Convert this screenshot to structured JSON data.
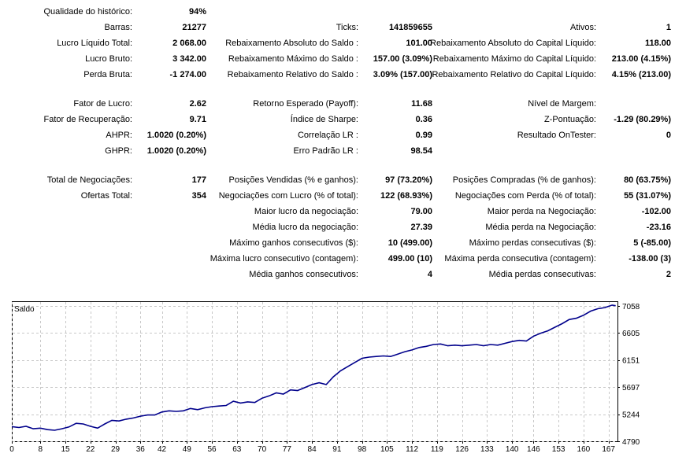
{
  "stats": [
    {
      "top": 7,
      "cells": [
        {
          "label": "Qualidade do histórico:",
          "value": "94%"
        }
      ]
    },
    {
      "top": 27,
      "cells": [
        {
          "label": "Barras:",
          "value": "21277"
        },
        {
          "label": "Ticks:",
          "value": "141859655"
        },
        {
          "label": "Ativos:",
          "value": "1"
        }
      ]
    },
    {
      "top": 47,
      "cells": [
        {
          "label": "Lucro Líquido Total:",
          "value": "2 068.00"
        },
        {
          "label": "Rebaixamento Absoluto do Saldo :",
          "value": "101.00"
        },
        {
          "label": "Rebaixamento Absoluto do Capital Líquido:",
          "value": "118.00"
        }
      ]
    },
    {
      "top": 67,
      "cells": [
        {
          "label": "Lucro Bruto:",
          "value": "3 342.00"
        },
        {
          "label": "Rebaixamento Máximo do Saldo :",
          "value": "157.00 (3.09%)"
        },
        {
          "label": "Rebaixamento Máximo do Capital Líquido:",
          "value": "213.00 (4.15%)"
        }
      ]
    },
    {
      "top": 87,
      "cells": [
        {
          "label": "Perda Bruta:",
          "value": "-1 274.00"
        },
        {
          "label": "Rebaixamento Relativo do Saldo :",
          "value": "3.09% (157.00)"
        },
        {
          "label": "Rebaixamento Relativo do Capital Líquido:",
          "value": "4.15% (213.00)"
        }
      ]
    },
    {
      "top": 124,
      "cells": [
        {
          "label": "Fator de Lucro:",
          "value": "2.62"
        },
        {
          "label": "Retorno Esperado (Payoff):",
          "value": "11.68"
        },
        {
          "label": "Nível de Margem:",
          "value": ""
        }
      ]
    },
    {
      "top": 144,
      "cells": [
        {
          "label": "Fator de Recuperação:",
          "value": "9.71"
        },
        {
          "label": "Índice de Sharpe:",
          "value": "0.36"
        },
        {
          "label": "Z-Pontuação:",
          "value": "-1.29 (80.29%)"
        }
      ]
    },
    {
      "top": 164,
      "cells": [
        {
          "label": "AHPR:",
          "value": "1.0020 (0.20%)"
        },
        {
          "label": "Correlação LR :",
          "value": "0.99"
        },
        {
          "label": "Resultado OnTester:",
          "value": "0"
        }
      ]
    },
    {
      "top": 184,
      "cells": [
        {
          "label": "GHPR:",
          "value": "1.0020 (0.20%)"
        },
        {
          "label": "Erro Padrão LR :",
          "value": "98.54"
        }
      ]
    },
    {
      "top": 221,
      "cells": [
        {
          "label": "Total de Negociações:",
          "value": "177"
        },
        {
          "label": "Posições Vendidas (% e ganhos):",
          "value": "97 (73.20%)"
        },
        {
          "label": "Posições Compradas (% de ganhos):",
          "value": "80 (63.75%)"
        }
      ]
    },
    {
      "top": 241,
      "cells": [
        {
          "label": "Ofertas Total:",
          "value": "354"
        },
        {
          "label": "Negociações com Lucro (% of total):",
          "value": "122 (68.93%)"
        },
        {
          "label": "Negociações com Perda (% of total):",
          "value": "55 (31.07%)"
        }
      ]
    },
    {
      "top": 261,
      "cells": [
        null,
        {
          "label": "Maior lucro da negociação:",
          "value": "79.00"
        },
        {
          "label": "Maior perda na Negociação:",
          "value": "-102.00"
        }
      ]
    },
    {
      "top": 281,
      "cells": [
        null,
        {
          "label": "Média lucro da negociação:",
          "value": "27.39"
        },
        {
          "label": "Média perda na Negociação:",
          "value": "-23.16"
        }
      ]
    },
    {
      "top": 301,
      "cells": [
        null,
        {
          "label": "Máximo ganhos consecutivos ($):",
          "value": "10 (499.00)"
        },
        {
          "label": "Máximo perdas consecutivas ($):",
          "value": "5 (-85.00)"
        }
      ]
    },
    {
      "top": 321,
      "cells": [
        null,
        {
          "label": "Máxima lucro consecutivo (contagem):",
          "value": "499.00 (10)"
        },
        {
          "label": "Máxima perda consecutiva (contagem):",
          "value": "-138.00 (3)"
        }
      ]
    },
    {
      "top": 341,
      "cells": [
        null,
        {
          "label": "Média ganhos consecutivos:",
          "value": "4"
        },
        {
          "label": "Média perdas consecutivas:",
          "value": "2"
        }
      ]
    }
  ],
  "chart_data": {
    "type": "line",
    "title": "Saldo",
    "xlabel": "",
    "ylabel": "",
    "x_ticks": [
      0,
      8,
      15,
      22,
      29,
      36,
      42,
      49,
      56,
      63,
      70,
      77,
      84,
      91,
      98,
      105,
      112,
      119,
      126,
      133,
      140,
      146,
      153,
      160,
      167
    ],
    "y_ticks": [
      4790,
      5244,
      5697,
      6151,
      6605,
      7058
    ],
    "xlim": [
      0,
      169.5
    ],
    "ylim": [
      4790,
      7135
    ],
    "grid": true,
    "line_color": "#00008B",
    "series": [
      {
        "name": "",
        "x": [
          0,
          2,
          4,
          6,
          8,
          10,
          12,
          14,
          16,
          18,
          20,
          22,
          24,
          26,
          28,
          30,
          32,
          34,
          36,
          38,
          40,
          42,
          44,
          46,
          48,
          50,
          52,
          54,
          56,
          58,
          60,
          62,
          64,
          66,
          68,
          70,
          72,
          74,
          76,
          78,
          80,
          82,
          84,
          86,
          88,
          90,
          92,
          94,
          96,
          98,
          100,
          102,
          104,
          106,
          108,
          110,
          112,
          114,
          116,
          118,
          120,
          122,
          124,
          126,
          128,
          130,
          132,
          134,
          136,
          138,
          140,
          142,
          144,
          146,
          148,
          150,
          152,
          154,
          156,
          158,
          160,
          162,
          164,
          166,
          168,
          169
        ],
        "y": [
          5035,
          5020,
          5040,
          5000,
          5010,
          4985,
          4975,
          5000,
          5030,
          5090,
          5080,
          5040,
          5010,
          5080,
          5140,
          5130,
          5160,
          5180,
          5210,
          5230,
          5230,
          5280,
          5300,
          5290,
          5300,
          5340,
          5320,
          5350,
          5370,
          5380,
          5390,
          5460,
          5430,
          5450,
          5440,
          5510,
          5550,
          5600,
          5580,
          5650,
          5640,
          5690,
          5740,
          5770,
          5740,
          5870,
          5970,
          6040,
          6110,
          6180,
          6200,
          6210,
          6220,
          6210,
          6250,
          6290,
          6320,
          6360,
          6380,
          6410,
          6420,
          6390,
          6400,
          6390,
          6400,
          6410,
          6390,
          6410,
          6400,
          6430,
          6460,
          6480,
          6470,
          6550,
          6600,
          6640,
          6700,
          6760,
          6830,
          6850,
          6900,
          6970,
          7010,
          7030,
          7070,
          7060
        ]
      }
    ]
  }
}
